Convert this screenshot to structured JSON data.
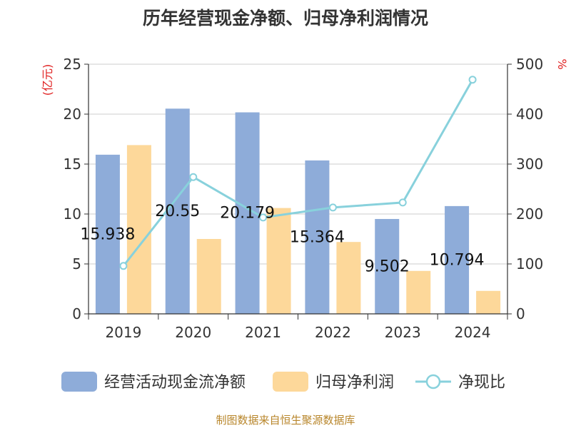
{
  "chart_data": {
    "type": "bar",
    "title": "历年经营现金净额、归母净利润情况",
    "categories": [
      "2019",
      "2020",
      "2021",
      "2022",
      "2023",
      "2024"
    ],
    "y_left": {
      "label": "(亿元)",
      "ticks": [
        "0",
        "5",
        "10",
        "15",
        "20",
        "25"
      ],
      "range": [
        0,
        25
      ]
    },
    "y_right": {
      "label": "%",
      "ticks": [
        "0",
        "100",
        "200",
        "300",
        "400",
        "500"
      ],
      "range": [
        0,
        500
      ]
    },
    "series": [
      {
        "name": "经营活动现金流净额",
        "type": "bar",
        "axis": "left",
        "values": [
          15.938,
          20.55,
          20.179,
          15.364,
          9.502,
          10.794
        ],
        "labels": [
          "15.938",
          "20.55",
          "20.179",
          "15.364",
          "9.502",
          "10.794"
        ],
        "color": "#8eacd9"
      },
      {
        "name": "归母净利润",
        "type": "bar",
        "axis": "left",
        "values": [
          16.9,
          7.5,
          10.6,
          7.2,
          4.3,
          2.3
        ],
        "color": "#fdd89a"
      },
      {
        "name": "净现比",
        "type": "line",
        "axis": "right",
        "values": [
          96,
          274,
          193,
          213,
          223,
          469
        ],
        "color": "#88d1dc"
      }
    ],
    "grid": true,
    "legend_position": "bottom"
  },
  "source": "制图数据来自恒生聚源数据库"
}
